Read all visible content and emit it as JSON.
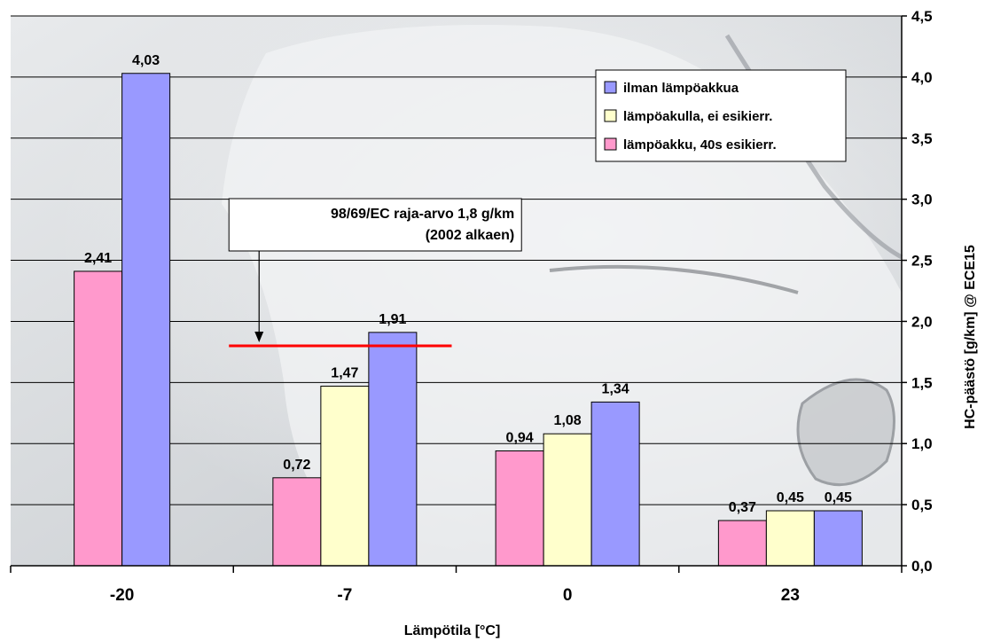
{
  "chart_data": {
    "type": "bar",
    "categories": [
      "-20",
      "-7",
      "0",
      "23"
    ],
    "series": [
      {
        "name": "ilman lämpöakkua",
        "color": "#9999ff",
        "values": [
          4.03,
          1.91,
          1.34,
          0.45
        ],
        "labels": [
          "4,03",
          "1,91",
          "1,34",
          "0,45"
        ]
      },
      {
        "name": "lämpöakulla, ei esikierr.",
        "color": "#ffffcc",
        "values": [
          null,
          1.47,
          1.08,
          0.45
        ],
        "labels": [
          null,
          "1,47",
          "1,08",
          "0,45"
        ]
      },
      {
        "name": "lämpöakku, 40s esikierr.",
        "color": "#ff99cc",
        "values": [
          2.41,
          0.72,
          0.94,
          0.37
        ],
        "labels": [
          "2,41",
          "0,72",
          "0,94",
          "0,37"
        ]
      }
    ],
    "bar_order": [
      2,
      1,
      0
    ],
    "xlabel": "Lämpötila [°C]",
    "ylabel": "HC-päästö [g/km] @ ECE15",
    "ylim": [
      0,
      4.5
    ],
    "yticks": [
      0,
      0.5,
      1,
      1.5,
      2,
      2.5,
      3,
      3.5,
      4,
      4.5
    ],
    "ytick_labels": [
      "0,0",
      "0,5",
      "1,0",
      "1,5",
      "2,0",
      "2,5",
      "3,0",
      "3,5",
      "4,0",
      "4,5"
    ],
    "y_axis_side": "right",
    "grid": true,
    "legend_position": "top-right",
    "reference_line": {
      "value": 1.8,
      "x_range": [
        0.98,
        1.98
      ],
      "color": "#ff0000",
      "annotation": [
        "98/69/EC raja-arvo 1,8 g/km",
        "(2002 alkaen)"
      ]
    }
  }
}
